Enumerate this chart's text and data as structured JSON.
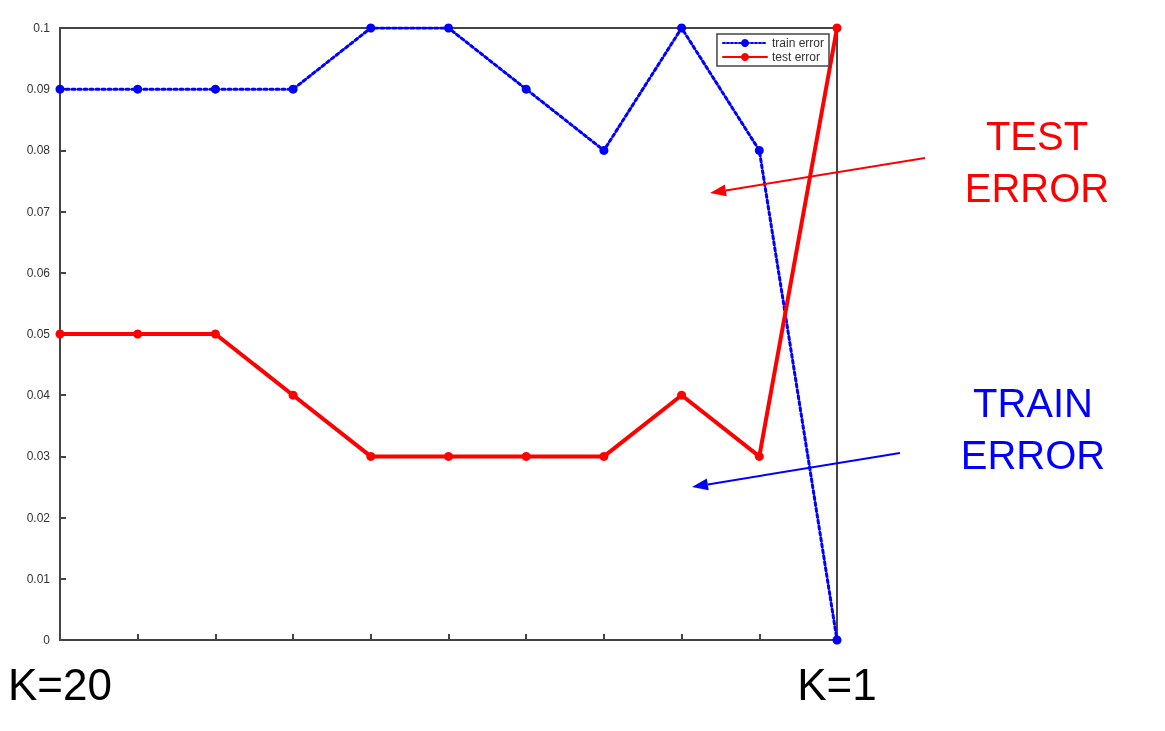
{
  "chart_data": {
    "type": "line",
    "categories": [
      "K=20",
      null,
      null,
      null,
      null,
      null,
      null,
      null,
      null,
      null,
      "K=1"
    ],
    "series": [
      {
        "name": "train error",
        "color": "#0000ff",
        "line_style": "dotted",
        "values": [
          0.09,
          0.09,
          0.09,
          0.09,
          0.1,
          0.1,
          0.09,
          0.08,
          0.1,
          0.08,
          0
        ]
      },
      {
        "name": "test error",
        "color": "#ff0000",
        "line_style": "solid",
        "values": [
          0.05,
          0.05,
          0.05,
          0.04,
          0.03,
          0.03,
          0.03,
          0.03,
          0.04,
          0.03,
          0.1
        ]
      }
    ],
    "ylim": [
      0,
      0.1
    ],
    "yticks": [
      0,
      0.01,
      0.02,
      0.03,
      0.04,
      0.05,
      0.06,
      0.07,
      0.08,
      0.09,
      0.1
    ],
    "annotations": [
      "TEST ERROR",
      "TRAIN ERROR"
    ],
    "legend": "top right",
    "marker": "circle",
    "grid": false
  }
}
